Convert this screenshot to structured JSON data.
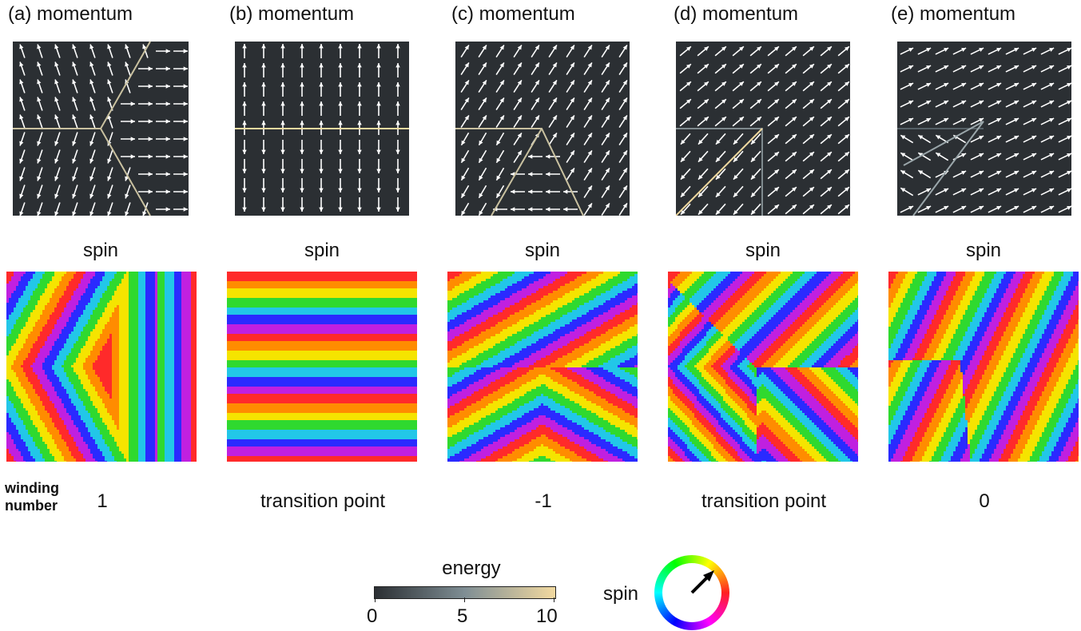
{
  "panels": [
    {
      "momentum_label": "(a)  momentum",
      "spin_label": "spin",
      "winding": "1",
      "stripes": "triangle"
    },
    {
      "momentum_label": "(b)  momentum",
      "spin_label": "spin",
      "winding": "transition point",
      "stripes": "horizontal"
    },
    {
      "momentum_label": "(c)  momentum",
      "spin_label": "spin",
      "winding": "-1",
      "stripes": "wedge"
    },
    {
      "momentum_label": "(d)  momentum",
      "spin_label": "spin",
      "winding": "transition point",
      "stripes": "chevron"
    },
    {
      "momentum_label": "(e)  momentum",
      "spin_label": "spin",
      "winding": "0",
      "stripes": "diagonal"
    }
  ],
  "winding_title_line1": "winding",
  "winding_title_line2": "number",
  "colorbar": {
    "title": "energy",
    "ticks": [
      "0",
      "5",
      "10"
    ],
    "colors": [
      "#2b2f33",
      "#8a9aa0",
      "#f0d9a0"
    ]
  },
  "spin_legend": {
    "label": "spin"
  },
  "colors": {
    "background": "#2b2f33",
    "arrow": "#ffffff",
    "boundary": "#c9c1a0"
  }
}
